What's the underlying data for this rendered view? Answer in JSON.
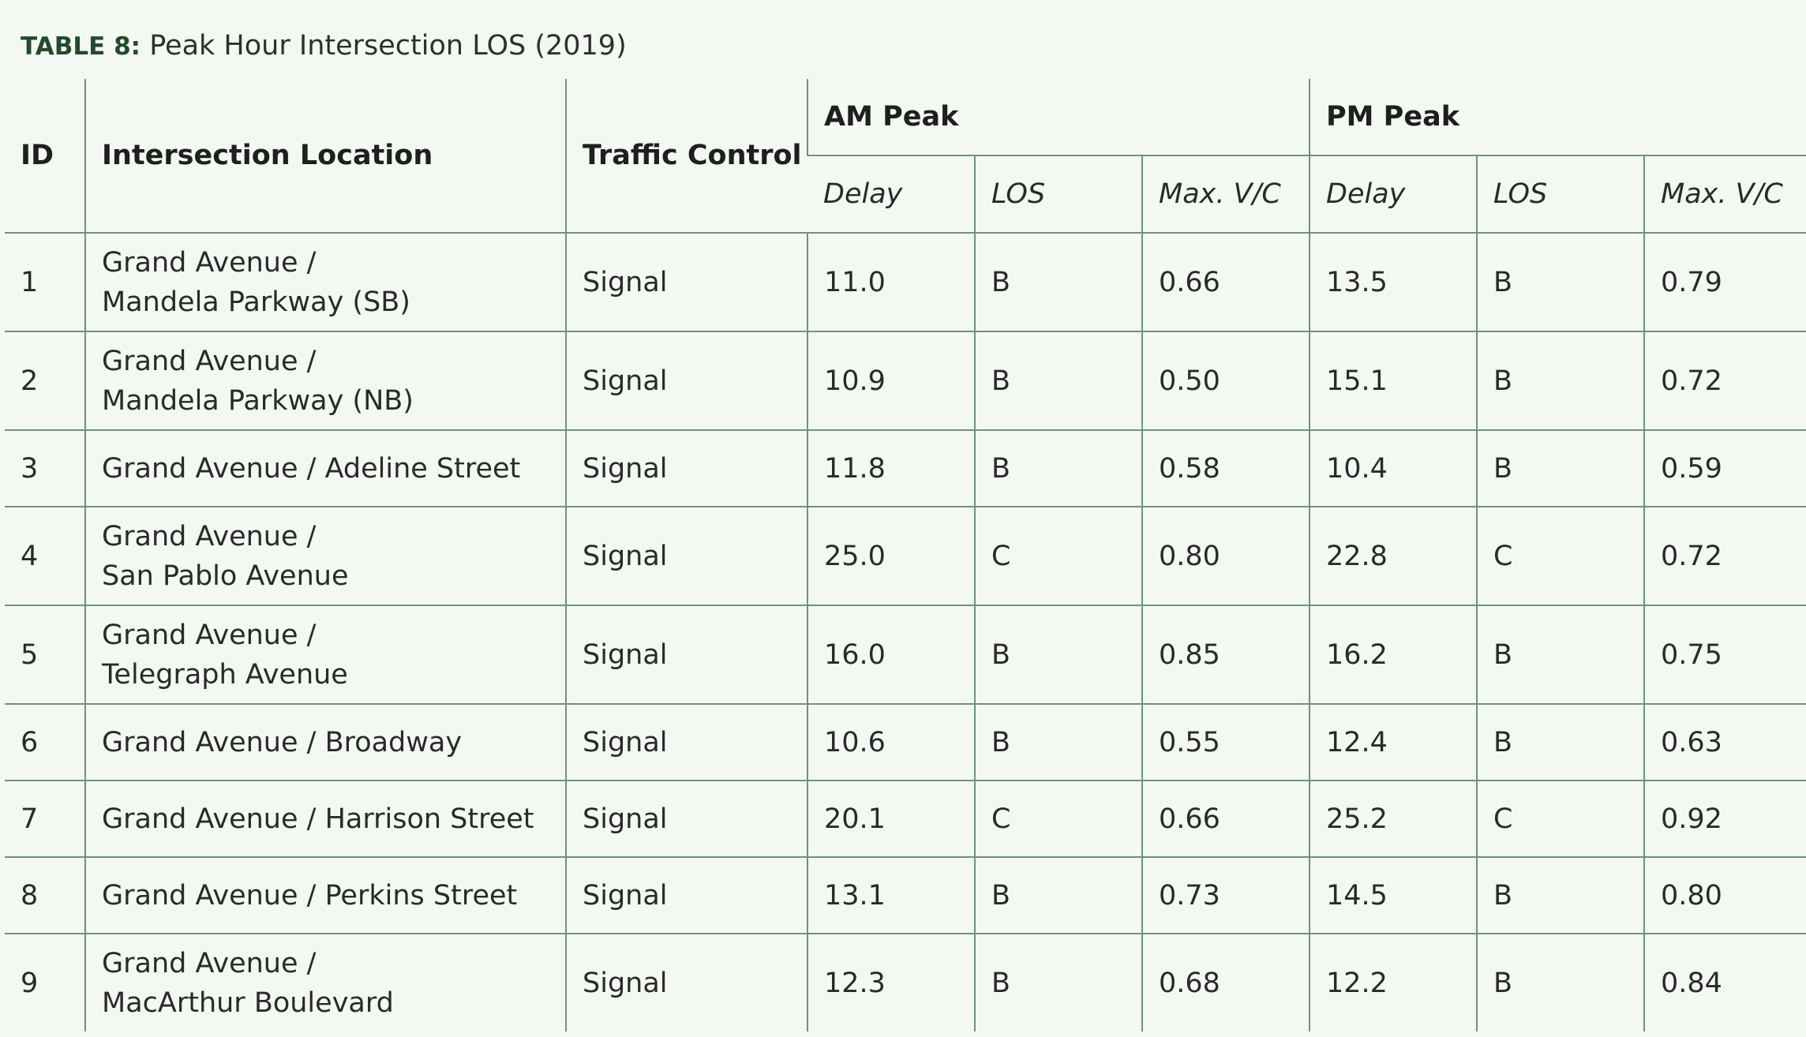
{
  "caption": {
    "label": "TABLE 8:",
    "text": "Peak Hour Intersection LOS (2019)"
  },
  "headers": {
    "id": "ID",
    "location": "Intersection Location",
    "control": "Traffic Control",
    "am": "AM Peak",
    "pm": "PM Peak",
    "delay": "Delay",
    "los": "LOS",
    "vc": "Max. V/C"
  },
  "rows": [
    {
      "id": "1",
      "loc1": "Grand Avenue /",
      "loc2": "Mandela Parkway (SB)",
      "control": "Signal",
      "am_delay": "11.0",
      "am_los": "B",
      "am_vc": "0.66",
      "pm_delay": "13.5",
      "pm_los": "B",
      "pm_vc": "0.79"
    },
    {
      "id": "2",
      "loc1": "Grand Avenue /",
      "loc2": "Mandela Parkway (NB)",
      "control": "Signal",
      "am_delay": "10.9",
      "am_los": "B",
      "am_vc": "0.50",
      "pm_delay": "15.1",
      "pm_los": "B",
      "pm_vc": "0.72"
    },
    {
      "id": "3",
      "loc1": "Grand Avenue / Adeline Street",
      "loc2": "",
      "control": "Signal",
      "am_delay": "11.8",
      "am_los": "B",
      "am_vc": "0.58",
      "pm_delay": "10.4",
      "pm_los": "B",
      "pm_vc": "0.59"
    },
    {
      "id": "4",
      "loc1": "Grand Avenue /",
      "loc2": "San Pablo Avenue",
      "control": "Signal",
      "am_delay": "25.0",
      "am_los": "C",
      "am_vc": "0.80",
      "pm_delay": "22.8",
      "pm_los": "C",
      "pm_vc": "0.72"
    },
    {
      "id": "5",
      "loc1": "Grand Avenue /",
      "loc2": "Telegraph Avenue",
      "control": "Signal",
      "am_delay": "16.0",
      "am_los": "B",
      "am_vc": "0.85",
      "pm_delay": "16.2",
      "pm_los": "B",
      "pm_vc": "0.75"
    },
    {
      "id": "6",
      "loc1": "Grand Avenue / Broadway",
      "loc2": "",
      "control": "Signal",
      "am_delay": "10.6",
      "am_los": "B",
      "am_vc": "0.55",
      "pm_delay": "12.4",
      "pm_los": "B",
      "pm_vc": "0.63"
    },
    {
      "id": "7",
      "loc1": "Grand Avenue / Harrison Street",
      "loc2": "",
      "control": "Signal",
      "am_delay": "20.1",
      "am_los": "C",
      "am_vc": "0.66",
      "pm_delay": "25.2",
      "pm_los": "C",
      "pm_vc": "0.92"
    },
    {
      "id": "8",
      "loc1": "Grand Avenue / Perkins Street",
      "loc2": "",
      "control": "Signal",
      "am_delay": "13.1",
      "am_los": "B",
      "am_vc": "0.73",
      "pm_delay": "14.5",
      "pm_los": "B",
      "pm_vc": "0.80"
    },
    {
      "id": "9",
      "loc1": "Grand Avenue /",
      "loc2": "MacArthur Boulevard",
      "control": "Signal",
      "am_delay": "12.3",
      "am_los": "B",
      "am_vc": "0.68",
      "pm_delay": "12.2",
      "pm_los": "B",
      "pm_vc": "0.84"
    }
  ]
}
